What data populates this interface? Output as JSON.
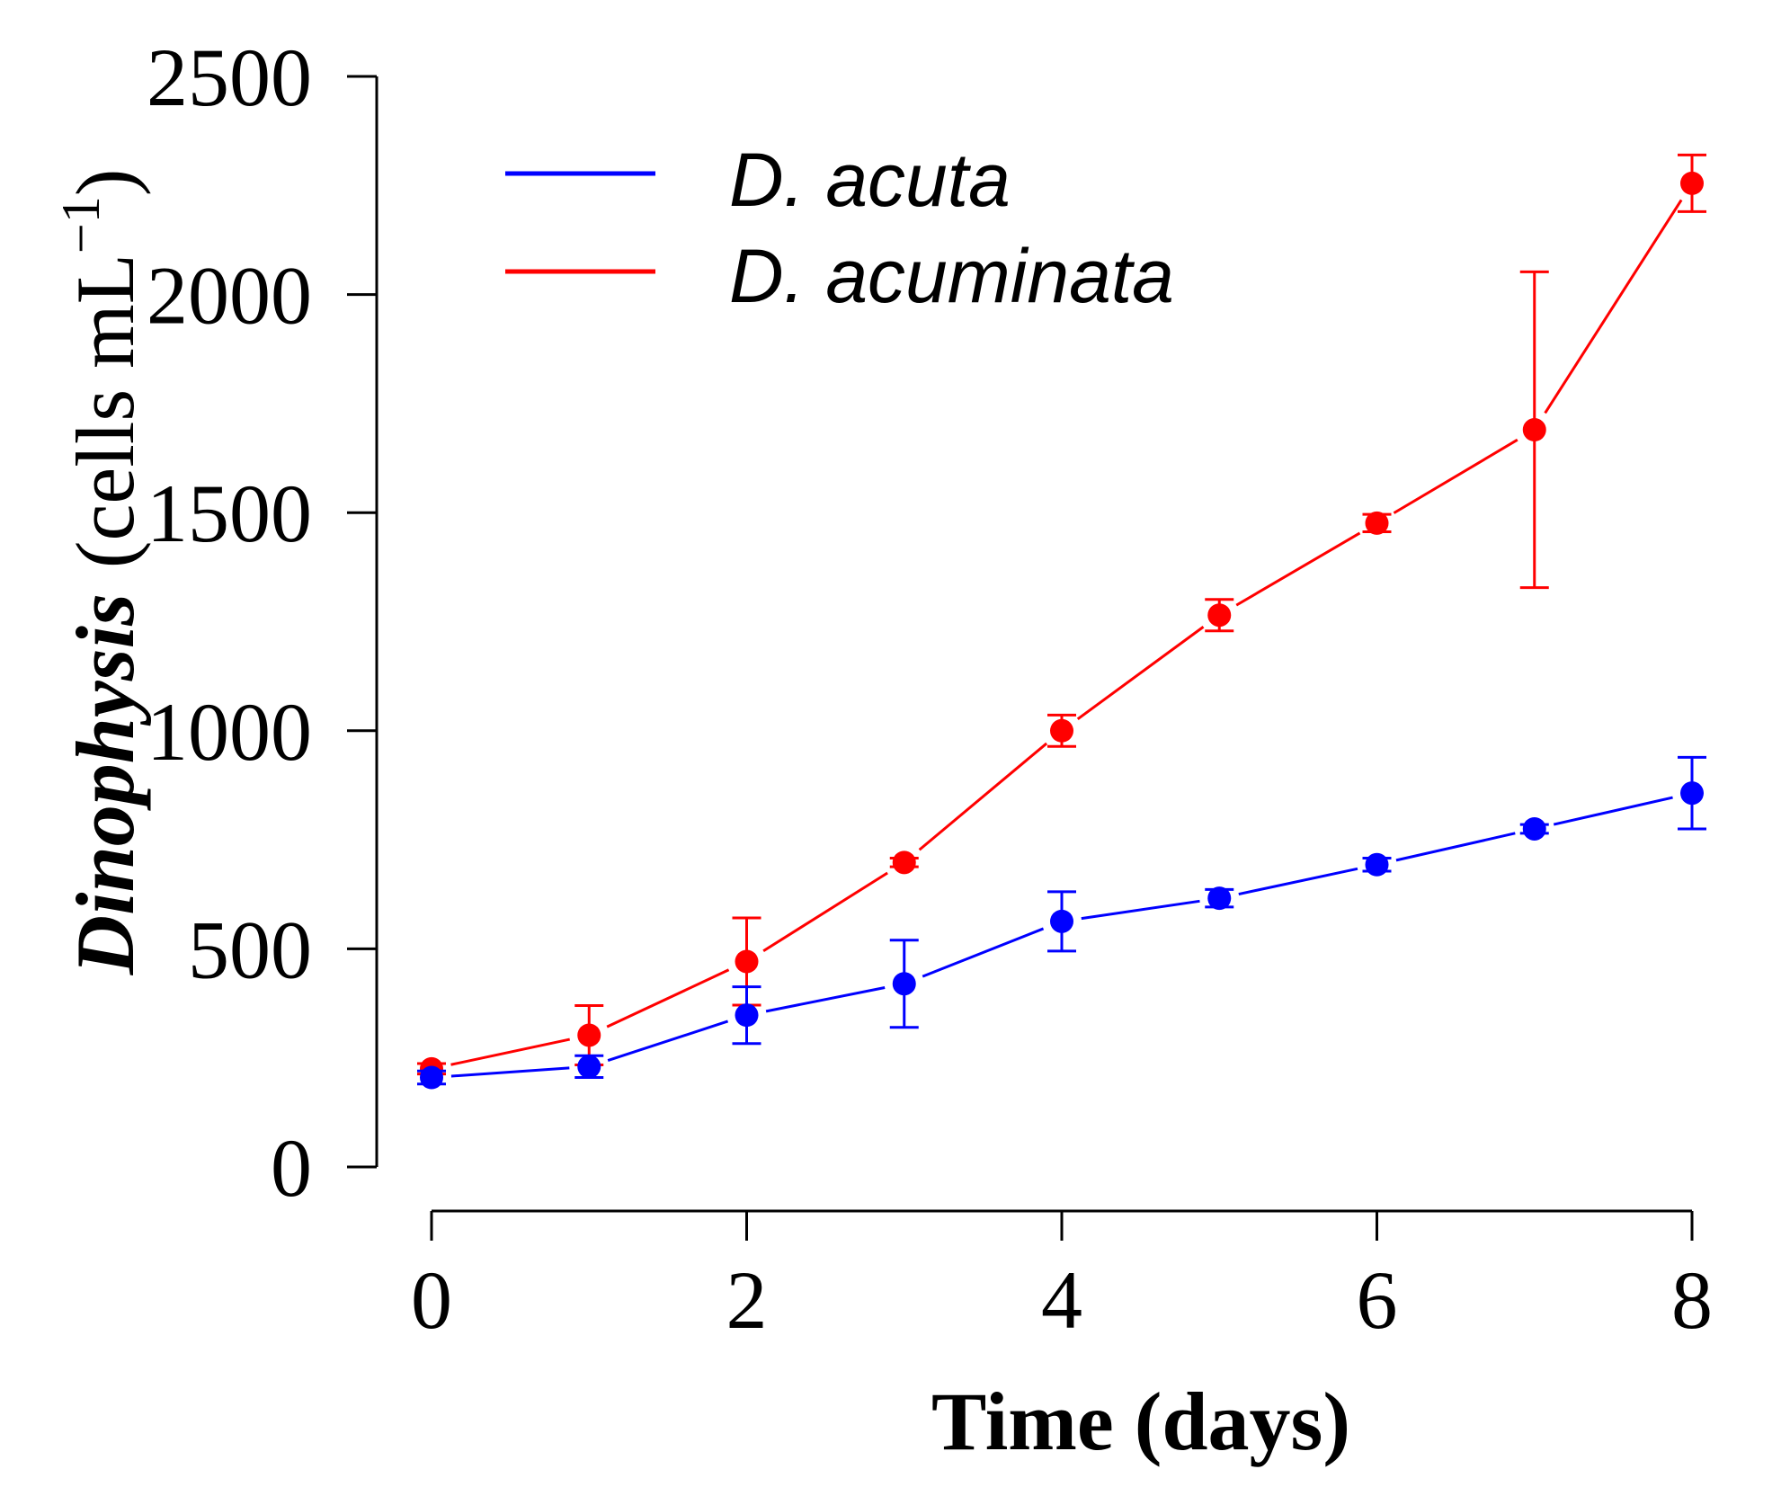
{
  "chart_data": {
    "type": "line",
    "title": "",
    "xlabel": "Time (days)",
    "ylabel": {
      "species": "Dinophysis",
      "units": "(cells mL",
      "exponent": "−1",
      "close": ")"
    },
    "xlim": [
      0,
      8
    ],
    "ylim": [
      0,
      2500
    ],
    "x_ticks": [
      0,
      2,
      4,
      6,
      8
    ],
    "y_ticks": [
      0,
      500,
      1000,
      1500,
      2000,
      2500
    ],
    "grid": false,
    "legend_position": "top-left",
    "x": [
      0,
      1,
      2,
      3,
      4,
      5,
      6,
      7,
      8
    ],
    "series": [
      {
        "name": "D. acuta",
        "color": "#0000FF",
        "values": [
          205,
          230,
          348,
          420,
          563,
          616,
          693,
          775,
          857
        ],
        "errors": [
          15,
          25,
          65,
          100,
          68,
          20,
          15,
          10,
          82
        ]
      },
      {
        "name": "D. acuminata",
        "color": "#FF0000",
        "values": [
          225,
          302,
          471,
          698,
          1000,
          1265,
          1476,
          1690,
          2255
        ],
        "errors": [
          12,
          68,
          100,
          10,
          36,
          36,
          20,
          362,
          65
        ]
      }
    ]
  }
}
